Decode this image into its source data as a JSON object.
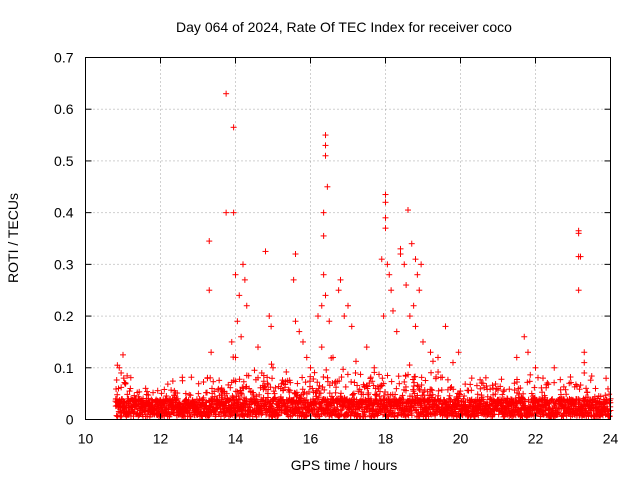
{
  "chart_data": {
    "type": "scatter",
    "title": "Day 064 of 2024, Rate Of TEC Index for receiver coco",
    "xlabel": "GPS time / hours",
    "ylabel": "ROTI / TECUs",
    "xlim": [
      10,
      24
    ],
    "ylim": [
      0,
      0.7
    ],
    "xticks": [
      10,
      12,
      14,
      16,
      18,
      20,
      22,
      24
    ],
    "yticks": [
      0,
      0.1,
      0.2,
      0.3,
      0.4,
      0.5,
      0.6,
      0.7
    ],
    "ytick_labels": [
      "0",
      "0.1",
      "0.2",
      "0.3",
      "0.4",
      "0.5",
      "0.6",
      "0.7"
    ],
    "grid": true,
    "marker": "+",
    "marker_color": "#ff0000",
    "points": [
      [
        10.85,
        0.105
      ],
      [
        10.9,
        0.1
      ],
      [
        10.95,
        0.09
      ],
      [
        11.0,
        0.125
      ],
      [
        10.88,
        0.06
      ],
      [
        11.02,
        0.08
      ],
      [
        13.3,
        0.345
      ],
      [
        13.3,
        0.25
      ],
      [
        13.35,
        0.13
      ],
      [
        13.75,
        0.63
      ],
      [
        13.75,
        0.4
      ],
      [
        13.95,
        0.565
      ],
      [
        13.95,
        0.4
      ],
      [
        14.0,
        0.28
      ],
      [
        14.1,
        0.24
      ],
      [
        14.2,
        0.3
      ],
      [
        14.25,
        0.27
      ],
      [
        14.3,
        0.22
      ],
      [
        14.05,
        0.19
      ],
      [
        14.15,
        0.16
      ],
      [
        13.9,
        0.15
      ],
      [
        14.0,
        0.12
      ],
      [
        14.6,
        0.14
      ],
      [
        14.8,
        0.325
      ],
      [
        14.9,
        0.2
      ],
      [
        14.95,
        0.18
      ],
      [
        14.7,
        0.09
      ],
      [
        15.0,
        0.1
      ],
      [
        15.6,
        0.32
      ],
      [
        15.55,
        0.27
      ],
      [
        15.6,
        0.19
      ],
      [
        15.7,
        0.17
      ],
      [
        15.8,
        0.15
      ],
      [
        15.9,
        0.12
      ],
      [
        16.0,
        0.1
      ],
      [
        16.2,
        0.2
      ],
      [
        16.3,
        0.14
      ],
      [
        16.4,
        0.55
      ],
      [
        16.4,
        0.53
      ],
      [
        16.4,
        0.51
      ],
      [
        16.45,
        0.45
      ],
      [
        16.35,
        0.4
      ],
      [
        16.35,
        0.355
      ],
      [
        16.35,
        0.28
      ],
      [
        16.4,
        0.24
      ],
      [
        16.3,
        0.22
      ],
      [
        16.5,
        0.19
      ],
      [
        16.6,
        0.12
      ],
      [
        16.8,
        0.27
      ],
      [
        16.75,
        0.25
      ],
      [
        16.9,
        0.2
      ],
      [
        17.0,
        0.22
      ],
      [
        17.1,
        0.18
      ],
      [
        17.2,
        0.09
      ],
      [
        17.5,
        0.14
      ],
      [
        17.7,
        0.1
      ],
      [
        17.9,
        0.31
      ],
      [
        18.0,
        0.435
      ],
      [
        18.0,
        0.42
      ],
      [
        18.0,
        0.39
      ],
      [
        18.0,
        0.37
      ],
      [
        18.05,
        0.3
      ],
      [
        18.1,
        0.28
      ],
      [
        18.15,
        0.25
      ],
      [
        18.2,
        0.21
      ],
      [
        17.95,
        0.2
      ],
      [
        18.3,
        0.17
      ],
      [
        18.4,
        0.33
      ],
      [
        18.4,
        0.32
      ],
      [
        18.5,
        0.3
      ],
      [
        18.55,
        0.26
      ],
      [
        18.6,
        0.405
      ],
      [
        18.7,
        0.34
      ],
      [
        18.8,
        0.31
      ],
      [
        18.85,
        0.28
      ],
      [
        18.9,
        0.25
      ],
      [
        18.95,
        0.3
      ],
      [
        18.75,
        0.22
      ],
      [
        18.65,
        0.2
      ],
      [
        18.8,
        0.18
      ],
      [
        19.0,
        0.15
      ],
      [
        19.2,
        0.13
      ],
      [
        19.4,
        0.12
      ],
      [
        19.6,
        0.18
      ],
      [
        19.8,
        0.11
      ],
      [
        19.95,
        0.13
      ],
      [
        20.3,
        0.08
      ],
      [
        20.6,
        0.07
      ],
      [
        21.0,
        0.06
      ],
      [
        21.5,
        0.12
      ],
      [
        21.7,
        0.16
      ],
      [
        21.8,
        0.13
      ],
      [
        22.0,
        0.1
      ],
      [
        22.2,
        0.08
      ],
      [
        22.5,
        0.1
      ],
      [
        22.9,
        0.07
      ],
      [
        23.15,
        0.36
      ],
      [
        23.15,
        0.365
      ],
      [
        23.15,
        0.315
      ],
      [
        23.2,
        0.315
      ],
      [
        23.15,
        0.25
      ],
      [
        23.3,
        0.13
      ],
      [
        23.3,
        0.11
      ],
      [
        23.3,
        0.09
      ],
      [
        23.6,
        0.06
      ],
      [
        24.0,
        0.04
      ]
    ]
  }
}
